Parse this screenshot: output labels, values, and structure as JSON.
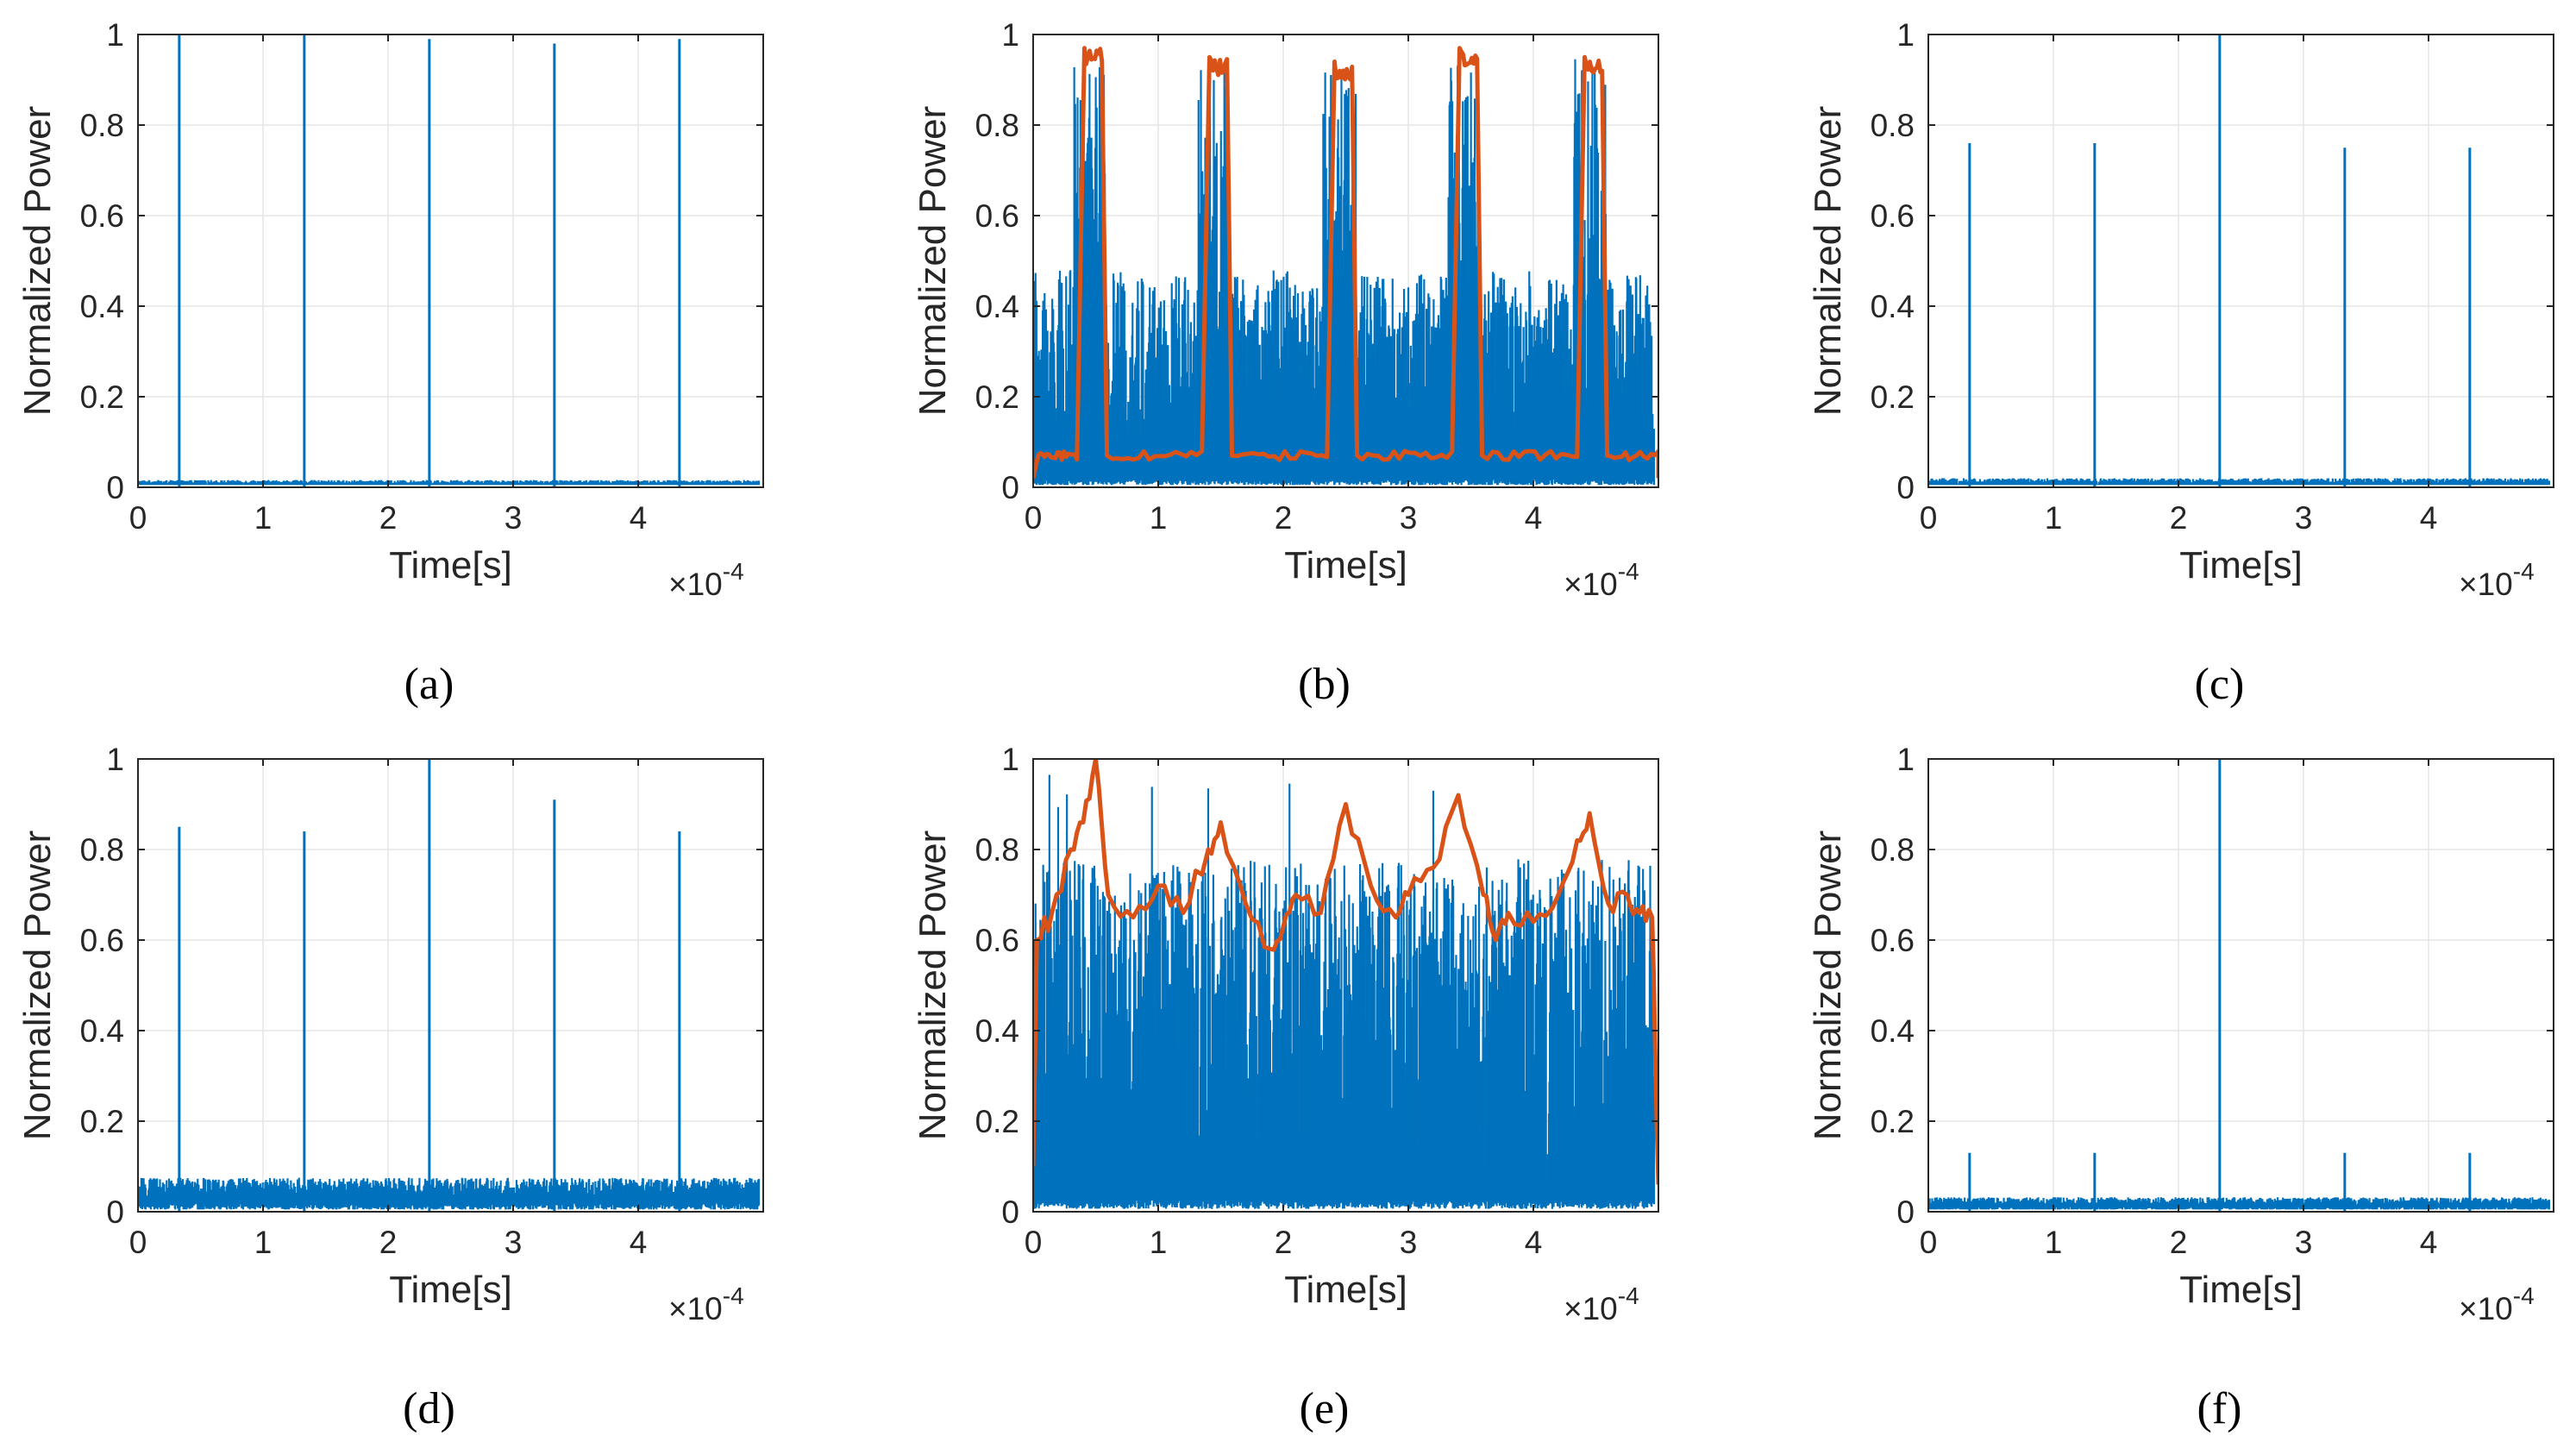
{
  "colors": {
    "signal": "#0072BD",
    "envelope": "#D95319",
    "grid": "#E6E6E6",
    "axis": "#262626"
  },
  "chart_data": [
    {
      "id": "a",
      "caption": "(a)",
      "type": "line",
      "xlabel": "Time[s]",
      "ylabel": "Normalized Power",
      "xlim": [
        0,
        5
      ],
      "ylim": [
        0,
        1
      ],
      "x_exponent_label": "×10",
      "x_exponent": "-4",
      "xticks": [
        "0",
        "1",
        "2",
        "3",
        "4"
      ],
      "yticks": [
        "0",
        "0.2",
        "0.4",
        "0.6",
        "0.8",
        "1"
      ],
      "grid": true,
      "series": [
        {
          "name": "signal",
          "color": "#0072BD",
          "noise_floor": 0.006,
          "noise_top": 0.016,
          "peaks": [
            {
              "x": 0.33,
              "y": 1.0
            },
            {
              "x": 1.33,
              "y": 1.0
            },
            {
              "x": 2.33,
              "y": 0.99
            },
            {
              "x": 3.33,
              "y": 0.98
            },
            {
              "x": 4.33,
              "y": 0.99
            }
          ]
        }
      ]
    },
    {
      "id": "b",
      "caption": "(b)",
      "type": "line",
      "xlabel": "Time[s]",
      "ylabel": "Normalized Power",
      "xlim": [
        0,
        5
      ],
      "ylim": [
        0,
        1
      ],
      "x_exponent_label": "×10",
      "x_exponent": "-4",
      "xticks": [
        "0",
        "1",
        "2",
        "3",
        "4"
      ],
      "yticks": [
        "0",
        "0.2",
        "0.4",
        "0.6",
        "0.8",
        "1"
      ],
      "grid": true,
      "series": [
        {
          "name": "signal",
          "color": "#0072BD",
          "noise_floor": 0.02,
          "noise_top": 0.48,
          "pulse_floor": 0.3,
          "pulse_top": 0.95
        },
        {
          "name": "envelope",
          "color": "#D95319",
          "baseline": 0.07,
          "pulses": [
            {
              "start": 0.35,
              "end": 0.55,
              "level": 0.97
            },
            {
              "start": 1.35,
              "end": 1.55,
              "level": 0.95
            },
            {
              "start": 2.35,
              "end": 2.55,
              "level": 0.94
            },
            {
              "start": 3.35,
              "end": 3.55,
              "level": 0.97
            },
            {
              "start": 4.35,
              "end": 4.55,
              "level": 0.95
            }
          ]
        }
      ]
    },
    {
      "id": "c",
      "caption": "(c)",
      "type": "line",
      "xlabel": "Time[s]",
      "ylabel": "Normalized Power",
      "xlim": [
        0,
        5
      ],
      "ylim": [
        0,
        1
      ],
      "x_exponent_label": "×10",
      "x_exponent": "-4",
      "xticks": [
        "0",
        "1",
        "2",
        "3",
        "4"
      ],
      "yticks": [
        "0",
        "0.2",
        "0.4",
        "0.6",
        "0.8",
        "1"
      ],
      "grid": true,
      "series": [
        {
          "name": "signal",
          "color": "#0072BD",
          "noise_floor": 0.006,
          "noise_top": 0.02,
          "peaks": [
            {
              "x": 0.33,
              "y": 0.76
            },
            {
              "x": 1.33,
              "y": 0.76
            },
            {
              "x": 2.33,
              "y": 1.0
            },
            {
              "x": 3.33,
              "y": 0.75
            },
            {
              "x": 4.33,
              "y": 0.75
            }
          ]
        }
      ]
    },
    {
      "id": "d",
      "caption": "(d)",
      "type": "line",
      "xlabel": "Time[s]",
      "ylabel": "Normalized Power",
      "xlim": [
        0,
        5
      ],
      "ylim": [
        0,
        1
      ],
      "x_exponent_label": "×10",
      "x_exponent": "-4",
      "xticks": [
        "0",
        "1",
        "2",
        "3",
        "4"
      ],
      "yticks": [
        "0",
        "0.2",
        "0.4",
        "0.6",
        "0.8",
        "1"
      ],
      "grid": true,
      "series": [
        {
          "name": "signal",
          "color": "#0072BD",
          "noise_floor": 0.02,
          "noise_top": 0.075,
          "peaks": [
            {
              "x": 0.33,
              "y": 0.85
            },
            {
              "x": 1.33,
              "y": 0.84
            },
            {
              "x": 2.33,
              "y": 1.0
            },
            {
              "x": 3.33,
              "y": 0.91
            },
            {
              "x": 4.33,
              "y": 0.84
            }
          ]
        }
      ]
    },
    {
      "id": "e",
      "caption": "(e)",
      "type": "line",
      "xlabel": "Time[s]",
      "ylabel": "Normalized Power",
      "xlim": [
        0,
        5
      ],
      "ylim": [
        0,
        1
      ],
      "x_exponent_label": "×10",
      "x_exponent": "-4",
      "xticks": [
        "0",
        "1",
        "2",
        "3",
        "4"
      ],
      "yticks": [
        "0",
        "0.2",
        "0.4",
        "0.6",
        "0.8",
        "1"
      ],
      "grid": true,
      "series": [
        {
          "name": "signal",
          "color": "#0072BD",
          "noise_floor": 0.03,
          "noise_top": 0.78,
          "max": 1.0
        },
        {
          "name": "envelope",
          "color": "#D95319",
          "points": [
            [
              0.0,
              0.1
            ],
            [
              0.03,
              0.6
            ],
            [
              0.15,
              0.66
            ],
            [
              0.3,
              0.8
            ],
            [
              0.4,
              0.86
            ],
            [
              0.5,
              1.0
            ],
            [
              0.6,
              0.7
            ],
            [
              0.8,
              0.65
            ],
            [
              1.0,
              0.72
            ],
            [
              1.2,
              0.66
            ],
            [
              1.4,
              0.8
            ],
            [
              1.5,
              0.86
            ],
            [
              1.7,
              0.68
            ],
            [
              1.9,
              0.58
            ],
            [
              2.0,
              0.63
            ],
            [
              2.1,
              0.7
            ],
            [
              2.3,
              0.66
            ],
            [
              2.5,
              0.9
            ],
            [
              2.7,
              0.72
            ],
            [
              2.9,
              0.65
            ],
            [
              3.0,
              0.7
            ],
            [
              3.2,
              0.76
            ],
            [
              3.4,
              0.92
            ],
            [
              3.6,
              0.7
            ],
            [
              3.7,
              0.6
            ],
            [
              3.8,
              0.66
            ],
            [
              4.0,
              0.64
            ],
            [
              4.2,
              0.7
            ],
            [
              4.35,
              0.82
            ],
            [
              4.45,
              0.88
            ],
            [
              4.6,
              0.68
            ],
            [
              4.75,
              0.7
            ],
            [
              4.85,
              0.66
            ],
            [
              4.95,
              0.65
            ],
            [
              5.0,
              0.06
            ]
          ]
        }
      ]
    },
    {
      "id": "f",
      "caption": "(f)",
      "type": "line",
      "xlabel": "Time[s]",
      "ylabel": "Normalized Power",
      "xlim": [
        0,
        5
      ],
      "ylim": [
        0,
        1
      ],
      "x_exponent_label": "×10",
      "x_exponent": "-4",
      "xticks": [
        "0",
        "1",
        "2",
        "3",
        "4"
      ],
      "yticks": [
        "0",
        "0.2",
        "0.4",
        "0.6",
        "0.8",
        "1"
      ],
      "grid": true,
      "series": [
        {
          "name": "signal",
          "color": "#0072BD",
          "noise_floor": 0.012,
          "noise_top": 0.032,
          "peaks": [
            {
              "x": 0.33,
              "y": 0.13
            },
            {
              "x": 1.33,
              "y": 0.13
            },
            {
              "x": 2.33,
              "y": 1.0
            },
            {
              "x": 3.33,
              "y": 0.13
            },
            {
              "x": 4.33,
              "y": 0.13
            }
          ]
        }
      ]
    }
  ]
}
